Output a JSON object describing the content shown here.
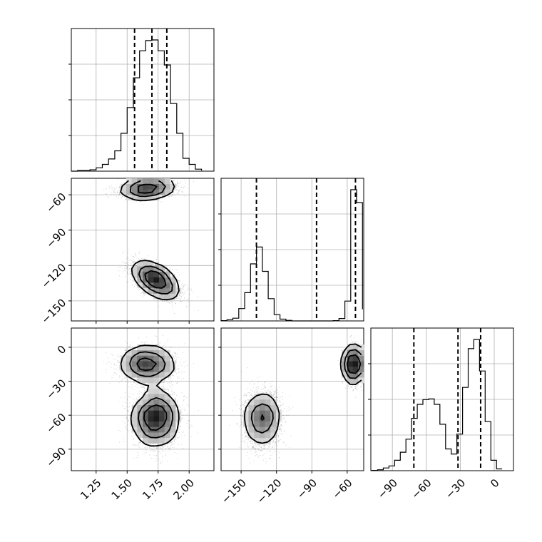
{
  "chart_data": {
    "type": "corner",
    "parameters": [
      {
        "id": "p0",
        "range": [
          1.05,
          2.2
        ],
        "ticks": [
          1.25,
          1.5,
          1.75,
          2.0
        ],
        "tick_labels": [
          "1.25",
          "1.50",
          "1.75",
          "2.00"
        ],
        "quantiles": [
          1.56,
          1.7,
          1.82
        ],
        "hist": {
          "bins": [
            1.05,
            1.1,
            1.15,
            1.2,
            1.25,
            1.3,
            1.35,
            1.4,
            1.45,
            1.5,
            1.55,
            1.6,
            1.65,
            1.7,
            1.75,
            1.8,
            1.85,
            1.9,
            1.95,
            2.0,
            2.05,
            2.1
          ],
          "counts": [
            0,
            1,
            1,
            2,
            5,
            10,
            18,
            30,
            56,
            94,
            138,
            178,
            193,
            194,
            178,
            157,
            100,
            56,
            19,
            10,
            3,
            1
          ]
        }
      },
      {
        "id": "p1",
        "range": [
          -167,
          -46
        ],
        "ticks": [
          -60,
          -90,
          -120,
          -150
        ],
        "tick_labels": [
          "−60",
          "−90",
          "−120",
          "−150"
        ],
        "quantiles": [
          -137,
          -86,
          -53
        ],
        "hist": {
          "bins": [
            -167,
            -162,
            -157,
            -152,
            -147,
            -142,
            -137,
            -132,
            -127,
            -122,
            -117,
            -112,
            -107,
            -102,
            -97,
            -92,
            -87,
            -82,
            -77,
            -72,
            -67,
            -62,
            -57,
            -52,
            -47
          ],
          "counts": [
            1,
            4,
            9,
            41,
            94,
            190,
            246,
            165,
            74,
            21,
            6,
            2,
            0,
            0,
            0,
            0,
            0,
            0,
            0,
            1,
            8,
            66,
            437,
            394,
            39
          ]
        }
      },
      {
        "id": "p2",
        "range": [
          -109,
          17
        ],
        "ticks": [
          -90,
          -60,
          -30,
          0
        ],
        "tick_labels": [
          "−90",
          "−60",
          "−30",
          "0"
        ],
        "quantiles": [
          -71,
          -32,
          -12
        ],
        "hist": {
          "bins": [
            -108,
            -103,
            -98,
            -93,
            -88,
            -83,
            -78,
            -73,
            -68,
            -63,
            -58,
            -53,
            -48,
            -43,
            -38,
            -33,
            -28,
            -23,
            -18,
            -13,
            -8,
            -3,
            2,
            7
          ],
          "counts": [
            1,
            3,
            9,
            16,
            35,
            62,
            106,
            176,
            223,
            239,
            241,
            223,
            156,
            73,
            56,
            123,
            280,
            410,
            441,
            335,
            165,
            35,
            6
          ]
        }
      }
    ],
    "modes": [
      {
        "weight": 0.4,
        "mean": [
          1.66,
          -55,
          -15
        ],
        "sd": [
          0.11,
          3.8,
          8
        ]
      },
      {
        "weight": 0.6,
        "mean": [
          1.73,
          -132,
          -63
        ],
        "sd": [
          0.09,
          7.5,
          12
        ]
      }
    ],
    "samples_shown": 5000,
    "density_levels": 3
  }
}
